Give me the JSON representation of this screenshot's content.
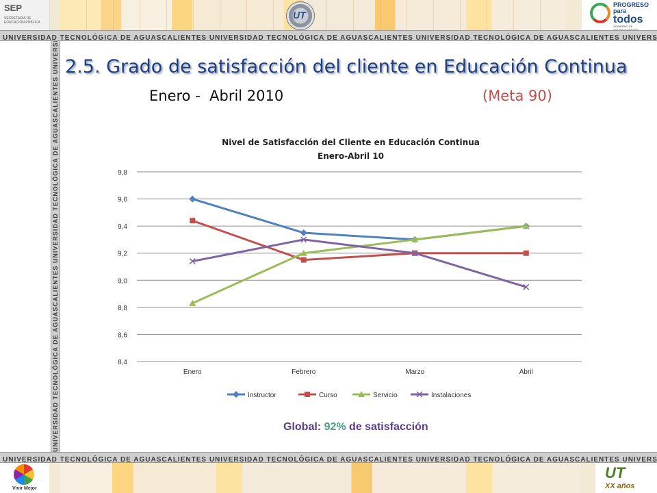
{
  "header": {
    "sep_label": "SEP",
    "sep_sub": "SECRETARÍA DE EDUCACIÓN PÚBLICA",
    "ut_logo_label": "UT",
    "progreso_line1": "PROGRESO",
    "progreso_line2": "para",
    "progreso_line3": "todos",
    "progreso_sub": "GOBIERNO DE AGUASCALIENTES"
  },
  "band_text": "UNIVERSIDAD TECNOLÓGICA DE AGUASCALIENTES",
  "title": "2.5. Grado de satisfacción del cliente en Educación Continua",
  "subtitle": "Enero -  Abril 2010",
  "meta": "(Meta 90)",
  "chart_data": {
    "type": "line",
    "title": "Nivel de Satisfacción del Cliente en Educación Continua",
    "subtitle": "Enero-Abril 10",
    "categories": [
      "Enero",
      "Febrero",
      "Marzo",
      "Abril"
    ],
    "ylim": [
      8.4,
      9.8
    ],
    "yticks": [
      "9,8",
      "9,6",
      "9,4",
      "9,2",
      "9,0",
      "8,8",
      "8,6",
      "8,4"
    ],
    "ytick_values": [
      9.8,
      9.6,
      9.4,
      9.2,
      9.0,
      8.8,
      8.6,
      8.4
    ],
    "grid": true,
    "legend_position": "bottom",
    "series": [
      {
        "name": "Instructor",
        "values": [
          9.6,
          9.35,
          9.3,
          9.4
        ],
        "color": "#4f81bd",
        "marker": "diamond"
      },
      {
        "name": "Curso",
        "values": [
          9.44,
          9.15,
          9.2,
          9.2
        ],
        "color": "#c0504d",
        "marker": "square"
      },
      {
        "name": "Servicio",
        "values": [
          8.83,
          9.2,
          9.3,
          9.4
        ],
        "color": "#9bbb59",
        "marker": "triangle"
      },
      {
        "name": "Instalaciones",
        "values": [
          9.14,
          9.3,
          9.2,
          8.95
        ],
        "color": "#8064a2",
        "marker": "x"
      }
    ]
  },
  "global_note": {
    "prefix": "Global: ",
    "pct": "92%",
    "suffix": " de satisfacción"
  },
  "footer": {
    "vivir_mejor": "Vivir Mejor",
    "ut_mark": "UT",
    "xx_label": "XX años"
  }
}
